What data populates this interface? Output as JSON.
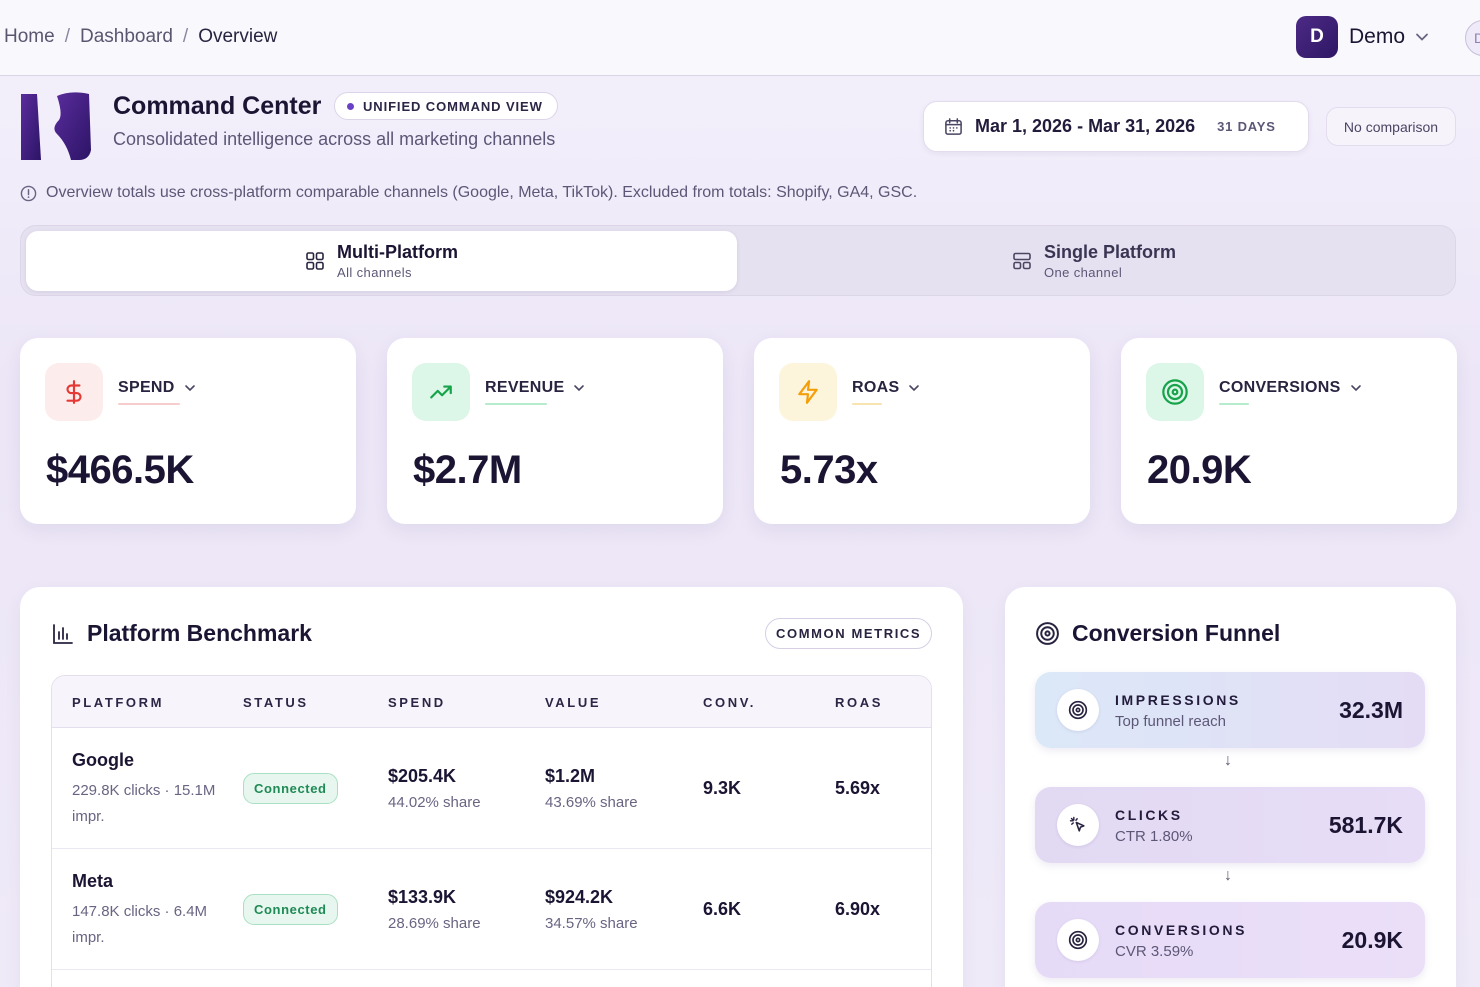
{
  "breadcrumb": {
    "home": "Home",
    "dashboard": "Dashboard",
    "current": "Overview"
  },
  "account": {
    "initial": "D",
    "name": "Demo",
    "edge_initial": "D"
  },
  "header": {
    "title": "Command Center",
    "badge": "UNIFIED COMMAND VIEW",
    "subtitle": "Consolidated intelligence across all marketing channels",
    "date_range": "Mar 1, 2026 - Mar 31, 2026",
    "days": "31 DAYS",
    "comparison": "No comparison",
    "info": "Overview totals use cross-platform comparable channels (Google, Meta, TikTok). Excluded from totals: Shopify, GA4, GSC."
  },
  "modes": [
    {
      "title": "Multi-Platform",
      "subtitle": "All channels"
    },
    {
      "title": "Single Platform",
      "subtitle": "One channel"
    }
  ],
  "kpis": [
    {
      "label": "SPEND",
      "value": "$466.5K",
      "icon": "dollar-icon",
      "color": "#e53935"
    },
    {
      "label": "REVENUE",
      "value": "$2.7M",
      "icon": "trending-up-icon",
      "color": "#16a34a"
    },
    {
      "label": "ROAS",
      "value": "5.73x",
      "icon": "lightning-icon",
      "color": "#f59e0b"
    },
    {
      "label": "CONVERSIONS",
      "value": "20.9K",
      "icon": "target-icon",
      "color": "#16a34a"
    }
  ],
  "benchmark": {
    "title": "Platform Benchmark",
    "badge": "COMMON METRICS",
    "columns": [
      "PLATFORM",
      "STATUS",
      "SPEND",
      "VALUE",
      "CONV.",
      "ROAS"
    ],
    "rows": [
      {
        "name": "Google",
        "meta": "229.8K clicks · 15.1M impr.",
        "status": "Connected",
        "spend": "$205.4K",
        "spend_share": "44.02% share",
        "value": "$1.2M",
        "value_share": "43.69% share",
        "conv": "9.3K",
        "roas": "5.69x"
      },
      {
        "name": "Meta",
        "meta": "147.8K clicks · 6.4M impr.",
        "status": "Connected",
        "spend": "$133.9K",
        "spend_share": "28.69% share",
        "value": "$924.2K",
        "value_share": "34.57% share",
        "conv": "6.6K",
        "roas": "6.90x"
      }
    ]
  },
  "funnel": {
    "title": "Conversion Funnel",
    "stages": [
      {
        "label": "IMPRESSIONS",
        "sub": "Top funnel reach",
        "value": "32.3M",
        "icon": "target-icon"
      },
      {
        "label": "CLICKS",
        "sub": "CTR 1.80%",
        "value": "581.7K",
        "icon": "cursor-click-icon"
      },
      {
        "label": "CONVERSIONS",
        "sub": "CVR 3.59%",
        "value": "20.9K",
        "icon": "target-icon"
      }
    ],
    "arrow": "↓"
  }
}
